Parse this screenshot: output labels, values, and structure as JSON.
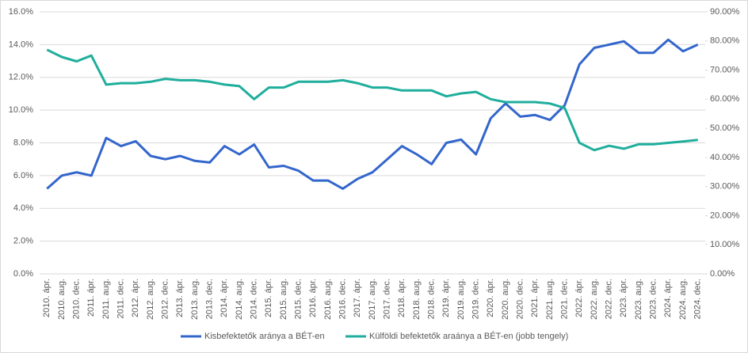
{
  "chart_data": {
    "type": "line",
    "categories": [
      "2010. ápr.",
      "2010. aug.",
      "2010. dec.",
      "2011. ápr.",
      "2011. aug.",
      "2011. dec.",
      "2012. ápr.",
      "2012. aug.",
      "2012. dec.",
      "2013. ápr.",
      "2013. aug.",
      "2013. dec.",
      "2014. ápr.",
      "2014. aug.",
      "2014. dec.",
      "2015. ápr.",
      "2015. aug.",
      "2015. dec.",
      "2016. ápr.",
      "2016. aug.",
      "2016. dec.",
      "2017. ápr.",
      "2017. aug.",
      "2017. dec.",
      "2018. ápr.",
      "2018. aug.",
      "2018. dec.",
      "2019. ápr.",
      "2019. aug.",
      "2019. dec.",
      "2020. ápr.",
      "2020. aug.",
      "2020. dec.",
      "2021. ápr.",
      "2021. aug.",
      "2021. dec.",
      "2022. ápr.",
      "2022. aug.",
      "2022. dec.",
      "2023. ápr.",
      "2023. aug.",
      "2023. dec.",
      "2024. ápr.",
      "2024. aug.",
      "2024. dec."
    ],
    "series": [
      {
        "name": "Kisbefektetők aránya a BÉT-en",
        "color": "#3366cc",
        "values": [
          5.2,
          6.0,
          6.2,
          6.0,
          8.3,
          7.8,
          8.1,
          7.2,
          7.0,
          7.2,
          6.9,
          6.8,
          7.8,
          7.3,
          7.9,
          6.5,
          6.6,
          6.3,
          5.7,
          5.7,
          5.2,
          5.8,
          6.2,
          7.0,
          7.8,
          7.3,
          6.7,
          8.0,
          8.2,
          7.3,
          9.5,
          10.4,
          9.6,
          9.7,
          9.4,
          10.3,
          12.8,
          13.8,
          14.0,
          14.2,
          13.5,
          13.5,
          14.3,
          13.6,
          14.0
        ]
      },
      {
        "name": "Külföldi befektetők araánya a BÉT-en (jobb tengely)",
        "color": "#1fae9c",
        "axis": "y2",
        "values": [
          77,
          74.5,
          73,
          75,
          65,
          65.5,
          65.5,
          66,
          67,
          66.5,
          66.5,
          66,
          65,
          64.5,
          60,
          64,
          64,
          66,
          66,
          66,
          66.5,
          65.5,
          64,
          64,
          63,
          63,
          63,
          61,
          62,
          62.5,
          60,
          59,
          59,
          59,
          58.5,
          57,
          45,
          42.5,
          44,
          43,
          44.5,
          44.5,
          45,
          45.5,
          46
        ]
      }
    ],
    "ylim": [
      0,
      16
    ],
    "yticks": [
      {
        "value": 0,
        "label": "0.0%"
      },
      {
        "value": 2,
        "label": "2.0%"
      },
      {
        "value": 4,
        "label": "4.0%"
      },
      {
        "value": 6,
        "label": "6.0%"
      },
      {
        "value": 8,
        "label": "8.0%"
      },
      {
        "value": 10,
        "label": "10.0%"
      },
      {
        "value": 12,
        "label": "12.0%"
      },
      {
        "value": 14,
        "label": "14.0%"
      },
      {
        "value": 16,
        "label": "16.0%"
      }
    ],
    "y2lim": [
      0,
      90
    ],
    "y2ticks": [
      {
        "value": 0,
        "label": "0.00%"
      },
      {
        "value": 10,
        "label": "10.00%"
      },
      {
        "value": 20,
        "label": "20.00%"
      },
      {
        "value": 30,
        "label": "30.00%"
      },
      {
        "value": 40,
        "label": "40.00%"
      },
      {
        "value": 50,
        "label": "50.00%"
      },
      {
        "value": 60,
        "label": "60.00%"
      },
      {
        "value": 70,
        "label": "70.00%"
      },
      {
        "value": 80,
        "label": "80.00%"
      },
      {
        "value": 90,
        "label": "90.00%"
      }
    ],
    "grid": true,
    "legend": "bottom"
  }
}
